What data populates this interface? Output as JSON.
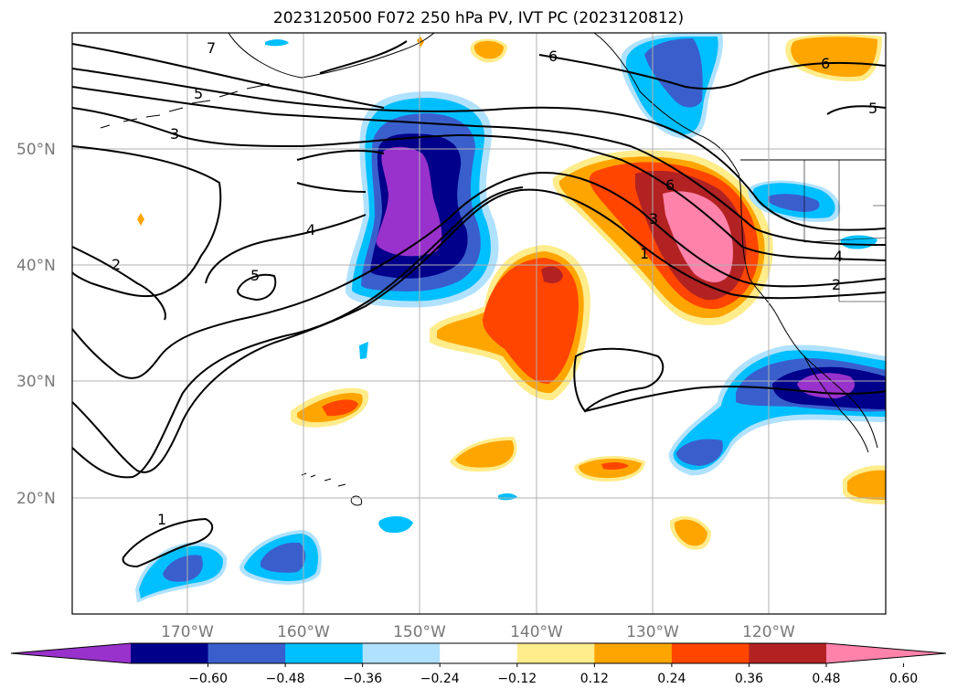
{
  "title": "2023120500 F072 250 hPa PV, IVT PC (2023120812)",
  "lat_labels": [
    "50°N",
    "40°N",
    "30°N",
    "20°N"
  ],
  "lon_labels": [
    "170°W",
    "160°W",
    "150°W",
    "140°W",
    "130°W",
    "120°W"
  ],
  "colorbar": {
    "ticks": [
      "−0.60",
      "−0.48",
      "−0.36",
      "−0.24",
      "−0.12",
      "0.12",
      "0.24",
      "0.36",
      "0.48",
      "0.60"
    ],
    "colors": [
      "#9932cc",
      "#00008b",
      "#3a5fcd",
      "#00bfff",
      "#b0e2ff",
      "#ffffff",
      "#ffec8b",
      "#ffa500",
      "#ff4500",
      "#b22222",
      "#ff82ab"
    ]
  },
  "contour_labels": [
    "7",
    "5",
    "3",
    "2",
    "4",
    "5",
    "6",
    "6",
    "5",
    "6",
    "3",
    "1",
    "4",
    "2",
    "1"
  ]
}
